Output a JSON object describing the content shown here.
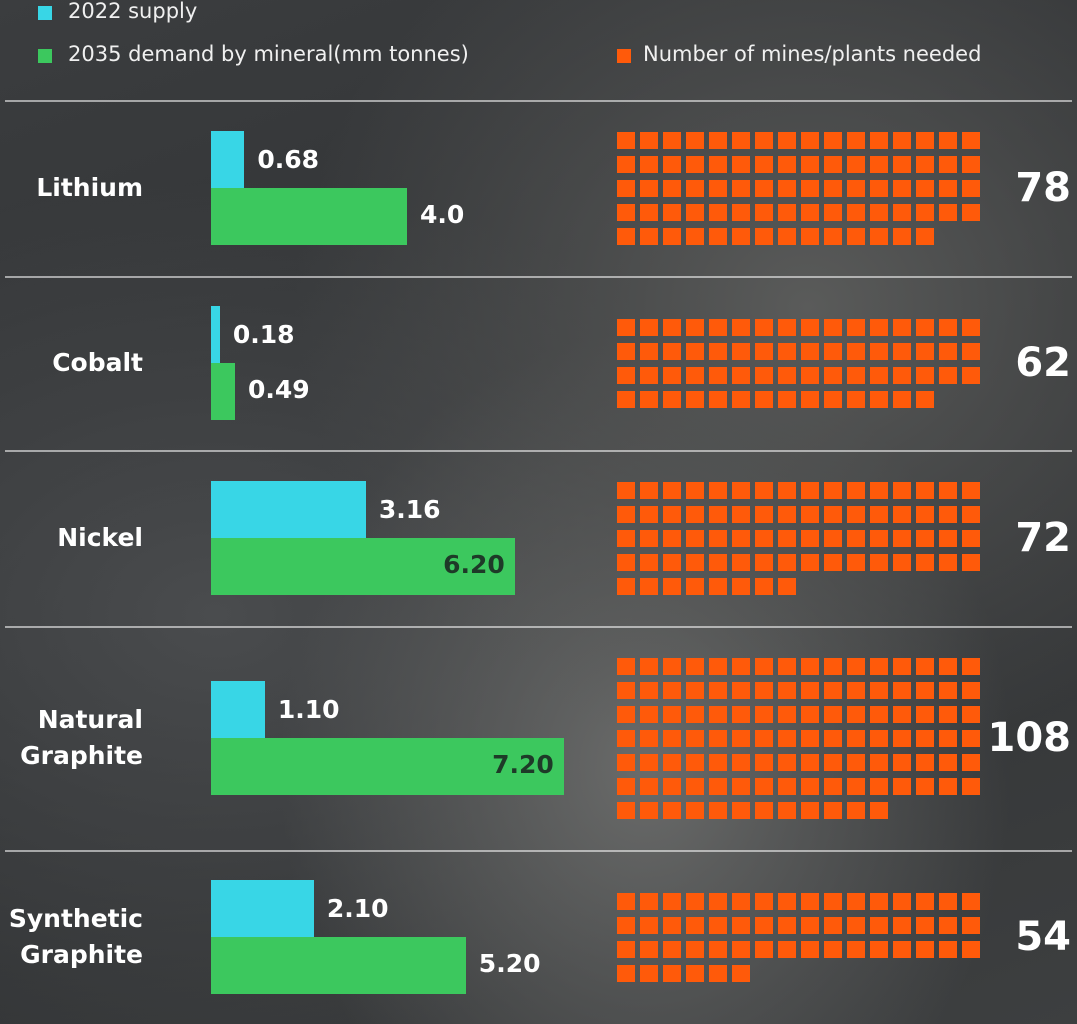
{
  "chart_data": {
    "type": "bar",
    "categories": [
      "Lithium",
      "Cobalt",
      "Nickel",
      "Natural Graphite",
      "Synthetic Graphite"
    ],
    "series": [
      {
        "name": "2022 supply",
        "color": "#38d6e6",
        "values": [
          0.68,
          0.18,
          3.16,
          1.1,
          2.1
        ],
        "value_labels": [
          "0.68",
          "0.18",
          "3.16",
          "1.10",
          "2.10"
        ]
      },
      {
        "name": "2035 demand by mineral(mm tonnes)",
        "color": "#3cc85e",
        "values": [
          4.0,
          0.49,
          6.2,
          7.2,
          5.2
        ],
        "value_labels": [
          "4.0",
          "0.49",
          "6.20",
          "7.20",
          "5.20"
        ]
      }
    ],
    "waffle": {
      "name": "Number of mines/plants needed",
      "color": "#ff5a0a",
      "values": [
        78,
        62,
        72,
        108,
        54
      ]
    }
  }
}
